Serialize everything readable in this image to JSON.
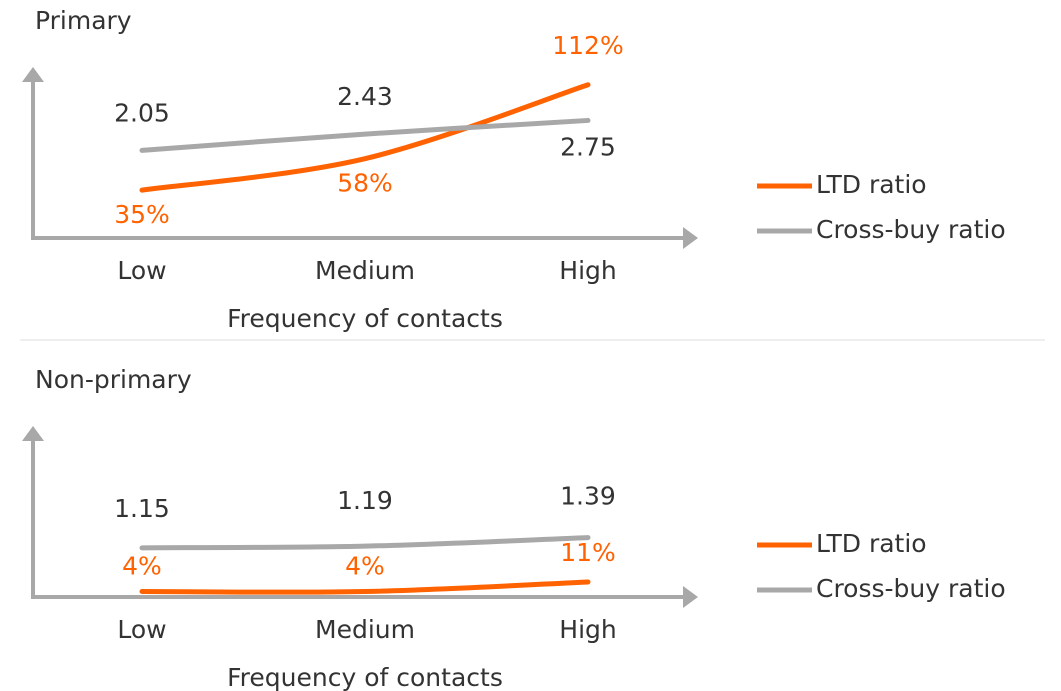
{
  "chart_data": [
    {
      "type": "line",
      "title": "Primary",
      "x_label": "Frequency of contacts",
      "categories": [
        "Low",
        "Medium",
        "High"
      ],
      "ylim": [
        0,
        125
      ],
      "y2lim": [
        0,
        4
      ],
      "legend": "right",
      "series": [
        {
          "name": "LTD ratio",
          "color": "#ff6200",
          "values": [
            35,
            58,
            112
          ],
          "value_labels": [
            "35%",
            "58%",
            "112%"
          ]
        },
        {
          "name": "Cross-buy ratio",
          "color": "#a8a8a8",
          "axis": "y2",
          "values": [
            2.05,
            2.43,
            2.75
          ]
        }
      ]
    },
    {
      "type": "line",
      "title": "Non-primary",
      "x_label": "Frequency of contacts",
      "categories": [
        "Low",
        "Medium",
        "High"
      ],
      "ylim": [
        0,
        125
      ],
      "y2lim": [
        0,
        4
      ],
      "legend": "right",
      "series": [
        {
          "name": "LTD ratio",
          "color": "#ff6200",
          "values": [
            4,
            4,
            11
          ],
          "value_labels": [
            "4%",
            "4%",
            "11%"
          ]
        },
        {
          "name": "Cross-buy ratio",
          "color": "#a8a8a8",
          "axis": "y2",
          "values": [
            1.15,
            1.19,
            1.39
          ]
        }
      ]
    }
  ]
}
